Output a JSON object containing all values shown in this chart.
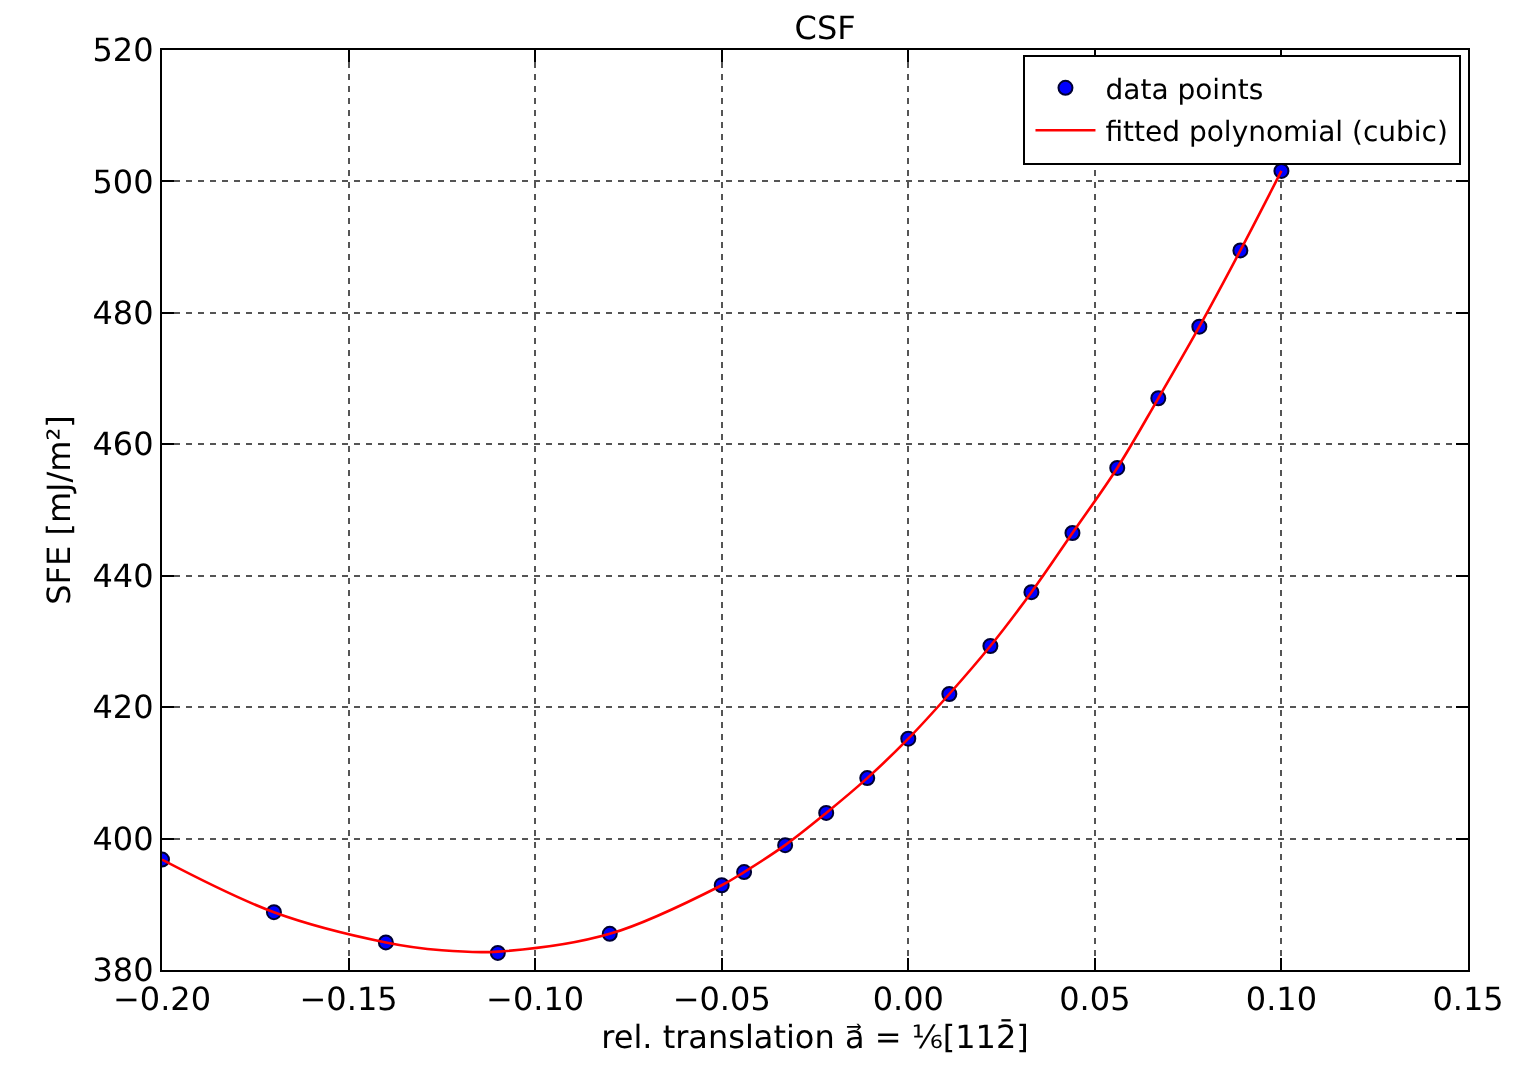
{
  "chart_data": {
    "type": "scatter",
    "title": "CSF",
    "xlabel": "rel. translation a⃗ = ⅙[112̄]",
    "ylabel": "SFE [mJ/m²]",
    "xlim": [
      -0.2,
      0.15
    ],
    "ylim": [
      380,
      520
    ],
    "xticks": [
      {
        "value": -0.2,
        "label": "−0.20"
      },
      {
        "value": -0.15,
        "label": "−0.15"
      },
      {
        "value": -0.1,
        "label": "−0.10"
      },
      {
        "value": -0.05,
        "label": "−0.05"
      },
      {
        "value": 0,
        "label": "0.00"
      },
      {
        "value": 0.05,
        "label": "0.05"
      },
      {
        "value": 0.1,
        "label": "0.10"
      },
      {
        "value": 0.15,
        "label": "0.15"
      }
    ],
    "yticks": [
      380,
      400,
      420,
      440,
      460,
      480,
      500,
      520
    ],
    "grid": true,
    "legend": "top right",
    "series": [
      {
        "name": "data points",
        "marker": "circle",
        "color": "#0000ff",
        "x": [
          -0.2,
          -0.17,
          -0.14,
          -0.11,
          -0.08,
          -0.05,
          -0.044,
          -0.033,
          -0.022,
          -0.011,
          0,
          0.011,
          0.022,
          0.033,
          0.044,
          0.056,
          0.067,
          0.078,
          0.089,
          0.1
        ],
        "values": [
          396.8,
          388.8,
          384.2,
          382.6,
          385.5,
          392.9,
          394.9,
          399.0,
          403.9,
          409.2,
          415.2,
          422.0,
          429.3,
          437.5,
          446.5,
          456.4,
          467.0,
          477.9,
          489.5,
          501.6
        ]
      },
      {
        "name": "fitted polynomial (cubic)",
        "type": "line",
        "line_style": "solid",
        "color": "#ff0000",
        "x": [
          -0.2,
          -0.17,
          -0.14,
          -0.125,
          -0.11,
          -0.08,
          -0.05,
          -0.044,
          -0.033,
          -0.022,
          -0.011,
          0,
          0.011,
          0.022,
          0.033,
          0.044,
          0.056,
          0.067,
          0.078,
          0.089,
          0.1
        ],
        "values": [
          396.8,
          388.8,
          384.2,
          383.0,
          382.8,
          385.5,
          392.9,
          394.9,
          399.0,
          403.9,
          409.2,
          415.2,
          422.0,
          429.3,
          437.5,
          446.5,
          456.4,
          467.0,
          477.9,
          489.5,
          501.6
        ]
      }
    ]
  }
}
